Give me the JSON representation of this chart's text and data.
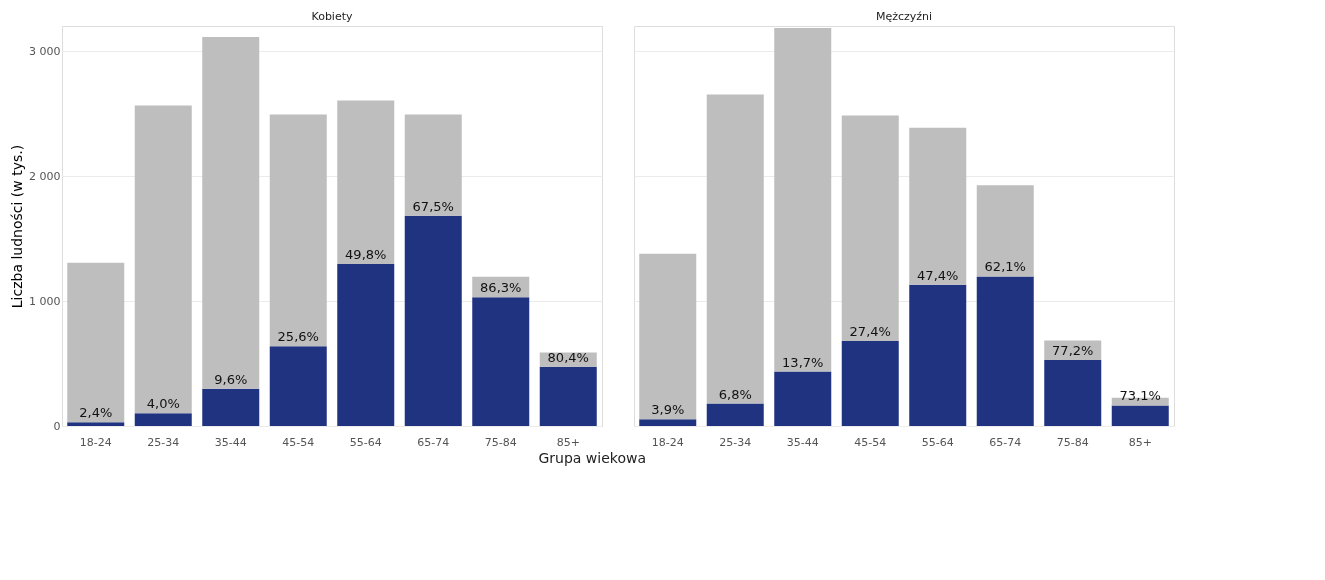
{
  "chart_data": [
    {
      "type": "bar",
      "title": "Kobiety",
      "ylabel": "Liczba ludności (w tys.)",
      "xlabel": "Grupa wiekowa",
      "stacked": true,
      "grid": "y",
      "legend": false,
      "categories": [
        "18-24",
        "25-34",
        "35-44",
        "45-54",
        "55-64",
        "65-74",
        "75-84",
        "85+"
      ],
      "ylim": [
        0,
        3200
      ],
      "yticks": [
        0,
        {
          "value": 1000,
          "label": "1 000"
        },
        {
          "value": 2000,
          "label": "2 000"
        },
        {
          "value": 3000,
          "label": "3 000"
        }
      ],
      "series": [
        {
          "color": "#1f3380",
          "values": [
            31,
            103,
            299,
            638,
            1297,
            1682,
            1030,
            474
          ]
        },
        {
          "color": "#bebebe",
          "values": [
            1275,
            2462,
            2814,
            1854,
            1308,
            810,
            164,
            115
          ]
        }
      ],
      "annotations": [
        {
          "text": "2,4%",
          "x": "18-24",
          "y": 31
        },
        {
          "text": "4,0%",
          "x": "25-34",
          "y": 103
        },
        {
          "text": "9,6%",
          "x": "35-44",
          "y": 299
        },
        {
          "text": "25,6%",
          "x": "45-54",
          "y": 638
        },
        {
          "text": "49,8%",
          "x": "55-64",
          "y": 1297
        },
        {
          "text": "67,5%",
          "x": "65-74",
          "y": 1682
        },
        {
          "text": "86,3%",
          "x": "75-84",
          "y": 1030
        },
        {
          "text": "80,4%",
          "x": "85+",
          "y": 474
        }
      ]
    },
    {
      "type": "bar",
      "title": "Mężczyźni",
      "stacked": true,
      "grid": "y",
      "legend": false,
      "tick_labels": "x",
      "categories": [
        "18-24",
        "25-34",
        "35-44",
        "45-54",
        "55-64",
        "65-74",
        "75-84",
        "85+"
      ],
      "ylim": [
        0,
        3200
      ],
      "yticks": [
        0,
        1000,
        2000,
        3000
      ],
      "series": [
        {
          "color": "#1f3380",
          "values": [
            54,
            180,
            436,
            681,
            1131,
            1197,
            529,
            165
          ]
        },
        {
          "color": "#bebebe",
          "values": [
            1325,
            2473,
            2749,
            1803,
            1256,
            730,
            156,
            61
          ]
        }
      ],
      "annotations": [
        {
          "text": "3,9%",
          "x": "18-24",
          "y": 54
        },
        {
          "text": "6,8%",
          "x": "25-34",
          "y": 180
        },
        {
          "text": "13,7%",
          "x": "35-44",
          "y": 436
        },
        {
          "text": "27,4%",
          "x": "45-54",
          "y": 681
        },
        {
          "text": "47,4%",
          "x": "55-64",
          "y": 1131
        },
        {
          "text": "62,1%",
          "x": "65-74",
          "y": 1197
        },
        {
          "text": "77,2%",
          "x": "75-84",
          "y": 529
        },
        {
          "text": "73,1%",
          "x": "85+",
          "y": 165
        }
      ]
    }
  ]
}
